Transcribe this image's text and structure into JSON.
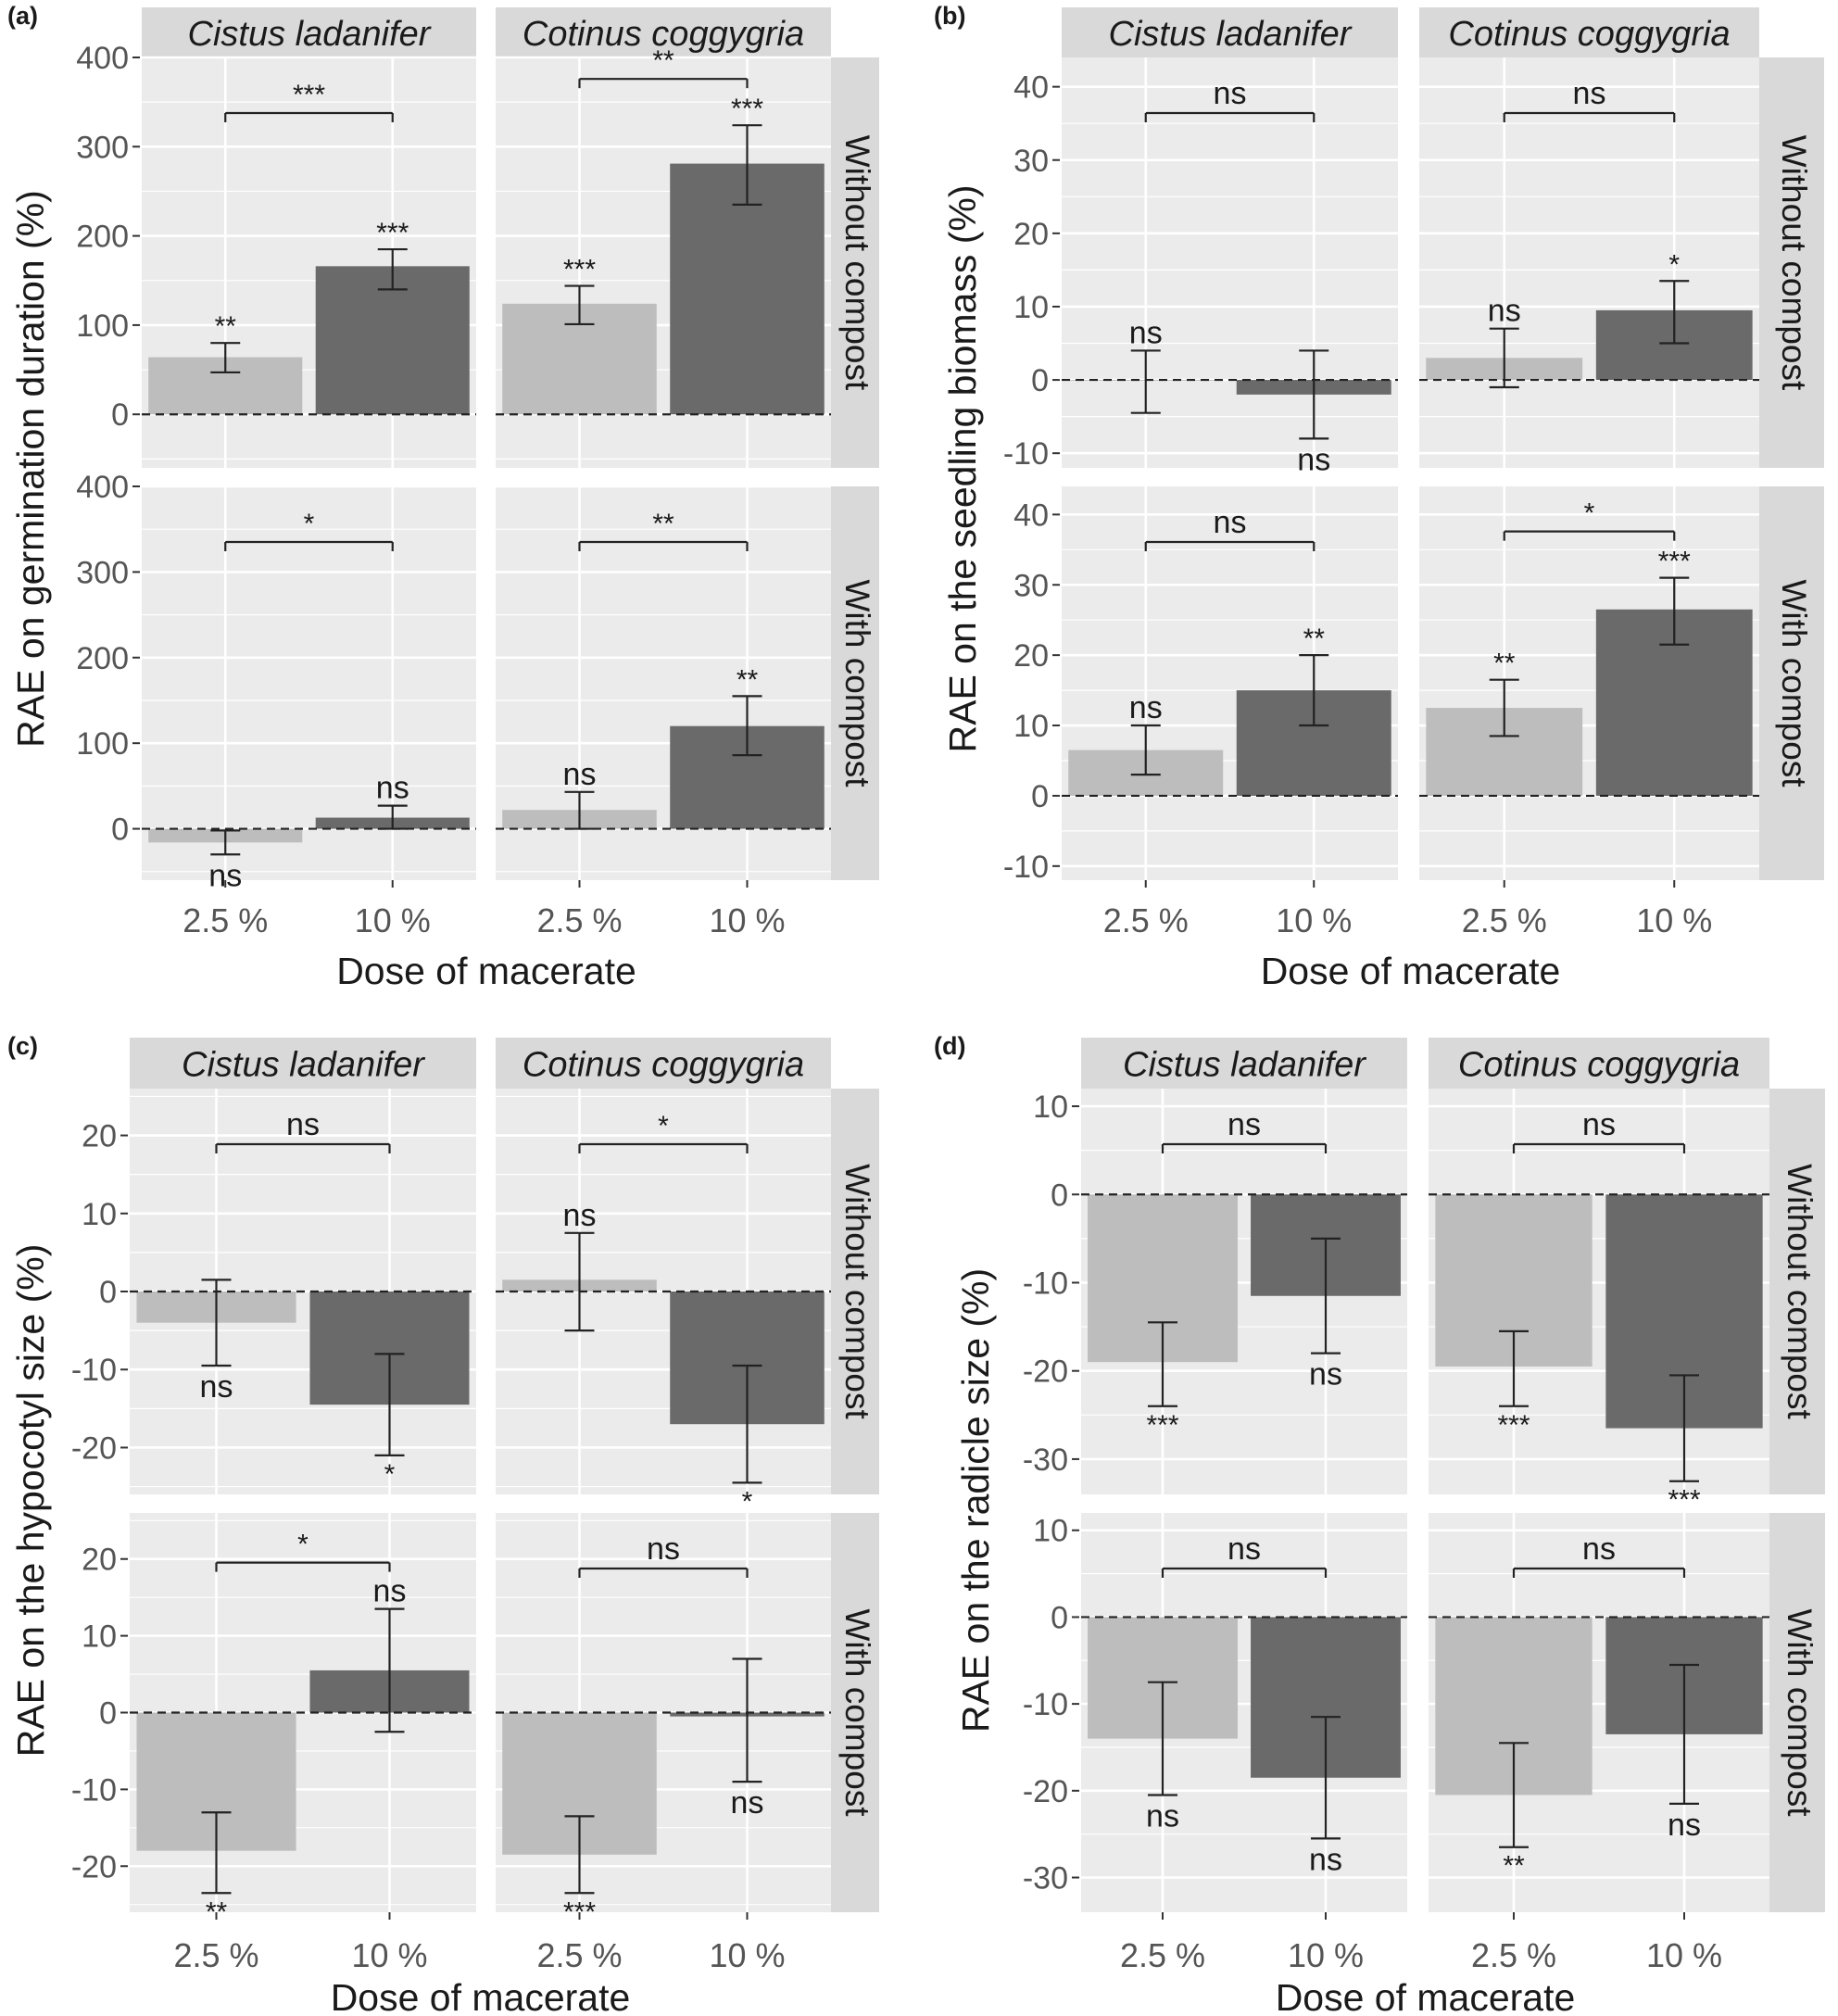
{
  "chart_data": [
    {
      "type": "bar",
      "panel_label": "(a)",
      "ylabel": "RAE on germination duration (%)",
      "xlabel": "Dose of macerate",
      "categories": [
        "2.5 %",
        "10 %"
      ],
      "ylim": [
        -60,
        400
      ],
      "yticks": [
        0,
        100,
        200,
        300,
        400
      ],
      "facets": {
        "columns": [
          "Cistus ladanifer",
          "Cotinus coggygria"
        ],
        "rows": [
          "Without compost",
          "With compost"
        ]
      },
      "cells": [
        {
          "column": "Cistus ladanifer",
          "row": "Without compost",
          "values": [
            64,
            166
          ],
          "err_low": [
            47,
            140
          ],
          "err_high": [
            80,
            185
          ],
          "labels": [
            "**",
            "***"
          ],
          "comparison": "***"
        },
        {
          "column": "Cotinus coggygria",
          "row": "Without compost",
          "values": [
            124,
            281
          ],
          "err_low": [
            101,
            235
          ],
          "err_high": [
            144,
            324
          ],
          "labels": [
            "***",
            "***"
          ],
          "comparison": "**"
        },
        {
          "column": "Cistus ladanifer",
          "row": "With compost",
          "values": [
            -16,
            13
          ],
          "err_low": [
            -30,
            0
          ],
          "err_high": [
            -2,
            27
          ],
          "labels": [
            "ns",
            "ns"
          ],
          "comparison": "*"
        },
        {
          "column": "Cotinus coggygria",
          "row": "With compost",
          "values": [
            22,
            120
          ],
          "err_low": [
            0,
            86
          ],
          "err_high": [
            43,
            155
          ],
          "labels": [
            "ns",
            "**"
          ],
          "comparison": "**"
        }
      ]
    },
    {
      "type": "bar",
      "panel_label": "(b)",
      "ylabel": "RAE on the seedling biomass (%)",
      "xlabel": "Dose of macerate",
      "categories": [
        "2.5 %",
        "10 %"
      ],
      "ylim": [
        -12,
        44
      ],
      "yticks": [
        -10,
        0,
        10,
        20,
        30,
        40
      ],
      "facets": {
        "columns": [
          "Cistus ladanifer",
          "Cotinus coggygria"
        ],
        "rows": [
          "Without compost",
          "With compost"
        ]
      },
      "cells": [
        {
          "column": "Cistus ladanifer",
          "row": "Without compost",
          "values": [
            0,
            -2
          ],
          "err_low": [
            -4.5,
            -8
          ],
          "err_high": [
            4,
            4
          ],
          "labels": [
            "ns",
            "ns"
          ],
          "comparison": "ns"
        },
        {
          "column": "Cotinus coggygria",
          "row": "Without compost",
          "values": [
            3,
            9.5
          ],
          "err_low": [
            -1,
            5
          ],
          "err_high": [
            7,
            13.5
          ],
          "labels": [
            "ns",
            "*"
          ],
          "comparison": "ns"
        },
        {
          "column": "Cistus ladanifer",
          "row": "With compost",
          "values": [
            6.5,
            15
          ],
          "err_low": [
            3,
            10
          ],
          "err_high": [
            10,
            20
          ],
          "labels": [
            "ns",
            "**"
          ],
          "comparison": "ns"
        },
        {
          "column": "Cotinus coggygria",
          "row": "With compost",
          "values": [
            12.5,
            26.5
          ],
          "err_low": [
            8.5,
            21.5
          ],
          "err_high": [
            16.5,
            31
          ],
          "labels": [
            "**",
            "***"
          ],
          "comparison": "*"
        }
      ]
    },
    {
      "type": "bar",
      "panel_label": "(c)",
      "ylabel": "RAE on the hypocotyl size (%)",
      "xlabel": "Dose of macerate",
      "categories": [
        "2.5 %",
        "10 %"
      ],
      "ylim": [
        -26,
        26
      ],
      "yticks": [
        -20,
        -10,
        0,
        10,
        20
      ],
      "facets": {
        "columns": [
          "Cistus ladanifer",
          "Cotinus coggygria"
        ],
        "rows": [
          "Without compost",
          "With compost"
        ]
      },
      "cells": [
        {
          "column": "Cistus ladanifer",
          "row": "Without compost",
          "values": [
            -4,
            -14.5
          ],
          "err_low": [
            -9.5,
            -21
          ],
          "err_high": [
            1.5,
            -8
          ],
          "labels": [
            "ns",
            "*"
          ],
          "comparison": "ns"
        },
        {
          "column": "Cotinus coggygria",
          "row": "Without compost",
          "values": [
            1.5,
            -17
          ],
          "err_low": [
            -5,
            -24.5
          ],
          "err_high": [
            7.5,
            -9.5
          ],
          "labels": [
            "ns",
            "*"
          ],
          "comparison": "*"
        },
        {
          "column": "Cistus ladanifer",
          "row": "With compost",
          "values": [
            -18,
            5.5
          ],
          "err_low": [
            -23.5,
            -2.5
          ],
          "err_high": [
            -13,
            13.5
          ],
          "labels": [
            "**",
            "ns"
          ],
          "comparison": "*"
        },
        {
          "column": "Cotinus coggygria",
          "row": "With compost",
          "values": [
            -18.5,
            -0.5
          ],
          "err_low": [
            -23.5,
            -9
          ],
          "err_high": [
            -13.5,
            7
          ],
          "labels": [
            "***",
            "ns"
          ],
          "comparison": "ns"
        }
      ]
    },
    {
      "type": "bar",
      "panel_label": "(d)",
      "ylabel": "RAE on the radicle size (%)",
      "xlabel": "Dose of macerate",
      "categories": [
        "2.5 %",
        "10 %"
      ],
      "ylim": [
        -34,
        12
      ],
      "yticks": [
        -30,
        -20,
        -10,
        0,
        10
      ],
      "facets": {
        "columns": [
          "Cistus ladanifer",
          "Cotinus coggygria"
        ],
        "rows": [
          "Without compost",
          "With compost"
        ]
      },
      "cells": [
        {
          "column": "Cistus ladanifer",
          "row": "Without compost",
          "values": [
            -19,
            -11.5
          ],
          "err_low": [
            -24,
            -18
          ],
          "err_high": [
            -14.5,
            -5
          ],
          "labels": [
            "***",
            "ns"
          ],
          "comparison": "ns"
        },
        {
          "column": "Cotinus coggygria",
          "row": "Without compost",
          "values": [
            -19.5,
            -26.5
          ],
          "err_low": [
            -24,
            -32.5
          ],
          "err_high": [
            -15.5,
            -20.5
          ],
          "labels": [
            "***",
            "***"
          ],
          "comparison": "ns"
        },
        {
          "column": "Cistus ladanifer",
          "row": "With compost",
          "values": [
            -14,
            -18.5
          ],
          "err_low": [
            -20.5,
            -25.5
          ],
          "err_high": [
            -7.5,
            -11.5
          ],
          "labels": [
            "ns",
            "ns"
          ],
          "comparison": "ns"
        },
        {
          "column": "Cotinus coggygria",
          "row": "With compost",
          "values": [
            -20.5,
            -13.5
          ],
          "err_low": [
            -26.5,
            -21.5
          ],
          "err_high": [
            -14.5,
            -5.5
          ],
          "labels": [
            "**",
            "ns"
          ],
          "comparison": "ns"
        }
      ]
    }
  ],
  "colors": {
    "panel_bg": "#ebebeb",
    "strip_bg": "#d9d9d9",
    "gridline": "#ffffff",
    "bar_low_dose": "#bdbdbd",
    "bar_high_dose": "#6a6a6a",
    "text": "#1a1a1a",
    "axis_text": "#555555"
  }
}
